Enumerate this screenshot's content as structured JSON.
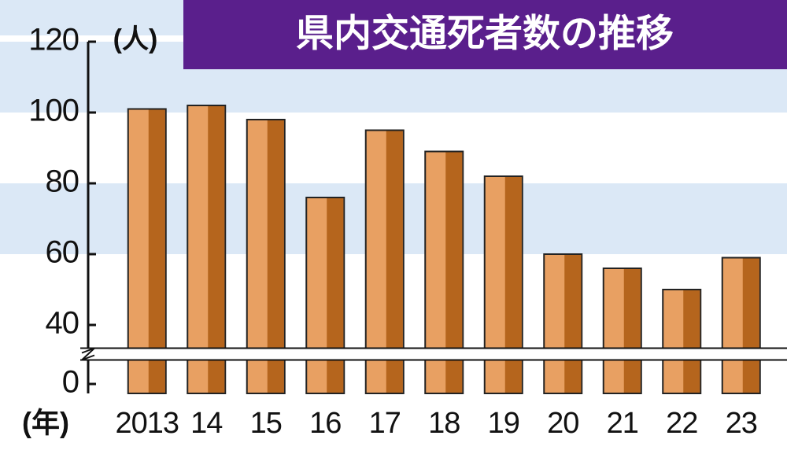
{
  "chart_data": {
    "type": "bar",
    "title": "県内交通死者数の推移",
    "y_unit_label": "(人)",
    "x_unit_label": "(年)",
    "categories": [
      "2013",
      "14",
      "15",
      "16",
      "17",
      "18",
      "19",
      "20",
      "21",
      "22",
      "23"
    ],
    "values": [
      101,
      102,
      98,
      76,
      95,
      89,
      82,
      60,
      56,
      50,
      59
    ],
    "color": "#e8a062",
    "shade_color": "#b5651d",
    "ylim": [
      0,
      120
    ],
    "yticks": [
      0,
      40,
      60,
      80,
      100,
      120
    ],
    "axis_break": true,
    "banded_background": true
  }
}
